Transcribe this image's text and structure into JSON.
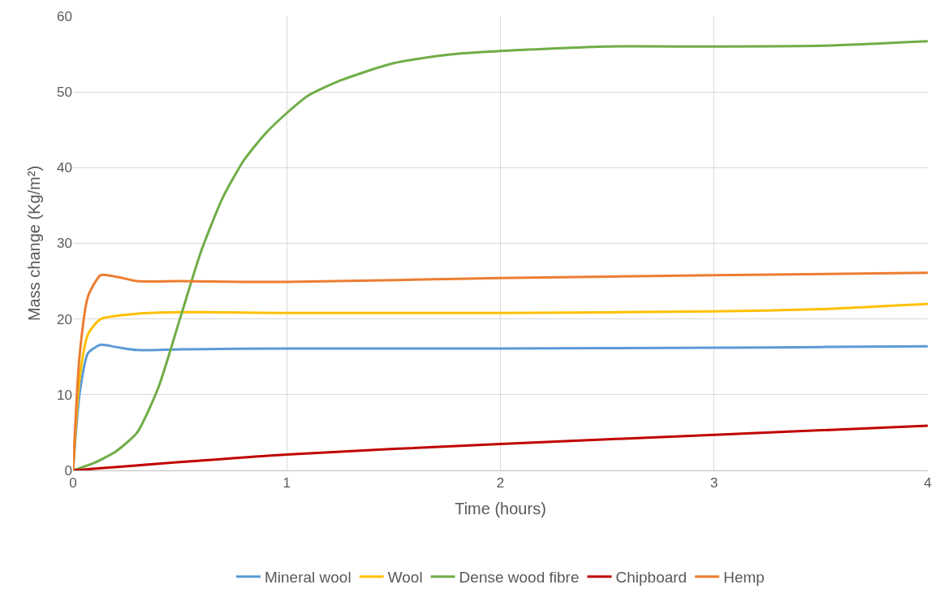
{
  "chart_data": {
    "type": "line",
    "xlabel": "Time (hours)",
    "ylabel": "Mass change (Kg/m²)",
    "xlim": [
      0,
      4
    ],
    "xticks": [
      0,
      1,
      2,
      3,
      4
    ],
    "ylim": [
      0,
      60
    ],
    "yticks": [
      0,
      10,
      20,
      30,
      40,
      50,
      60
    ],
    "grid": true,
    "legend": "bottom",
    "marker": "none",
    "line_style": "solid",
    "series": [
      {
        "name": "Mineral wool",
        "color": "#5b9bd5",
        "x": [
          0,
          0.03,
          0.07,
          0.13,
          0.2,
          0.3,
          0.5,
          1,
          2,
          3,
          3.5,
          4
        ],
        "values": [
          0,
          10,
          15.5,
          16.6,
          16.3,
          15.9,
          16,
          16.1,
          16.1,
          16.2,
          16.3,
          16.4
        ]
      },
      {
        "name": "Wool",
        "color": "#ffc000",
        "x": [
          0,
          0.03,
          0.07,
          0.13,
          0.3,
          0.5,
          1,
          2,
          3,
          3.5,
          4
        ],
        "values": [
          0,
          12,
          18,
          20,
          20.7,
          20.9,
          20.8,
          20.8,
          21,
          21.3,
          22
        ]
      },
      {
        "name": "Dense wood fibre",
        "color": "#70ad47",
        "x": [
          0,
          0.1,
          0.2,
          0.3,
          0.4,
          0.5,
          0.6,
          0.7,
          0.8,
          0.9,
          1,
          1.1,
          1.25,
          1.5,
          1.75,
          2,
          2.5,
          3,
          3.5,
          4
        ],
        "values": [
          0,
          1,
          2.5,
          5,
          11,
          20,
          29,
          36,
          41,
          44.5,
          47.2,
          49.5,
          51.5,
          53.8,
          54.9,
          55.4,
          56,
          56,
          56.1,
          56.7
        ]
      },
      {
        "name": "Chipboard",
        "color": "#c00000",
        "x": [
          0,
          1,
          2,
          3,
          4
        ],
        "values": [
          0,
          2.1,
          3.5,
          4.7,
          5.9
        ]
      },
      {
        "name": "Hemp",
        "color": "#ed7d31",
        "x": [
          0,
          0.03,
          0.07,
          0.13,
          0.2,
          0.3,
          0.5,
          0.8,
          1,
          2,
          3,
          4
        ],
        "values": [
          0,
          15,
          23,
          25.8,
          25.6,
          25,
          25,
          24.9,
          24.9,
          25.4,
          25.8,
          26.1
        ]
      }
    ]
  }
}
